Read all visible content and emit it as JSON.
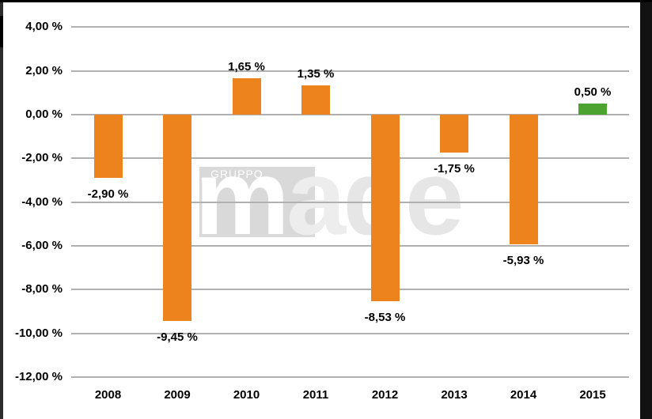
{
  "chart_data": {
    "type": "bar",
    "title": "",
    "xlabel": "",
    "ylabel": "",
    "categories": [
      "2008",
      "2009",
      "2010",
      "2011",
      "2012",
      "2013",
      "2014",
      "2015"
    ],
    "values": [
      -2.9,
      -9.45,
      1.65,
      1.35,
      -8.53,
      -1.75,
      -5.93,
      0.5
    ],
    "value_labels": [
      "-2,90 %",
      "-9,45 %",
      "1,65 %",
      "1,35 %",
      "-8,53 %",
      "-1,75 %",
      "-5,93 %",
      "0,50 %"
    ],
    "bar_colors": [
      "#ED831D",
      "#ED831D",
      "#ED831D",
      "#ED831D",
      "#ED831D",
      "#ED831D",
      "#ED831D",
      "#4DA32F"
    ],
    "y_axis": {
      "min": -12,
      "max": 4,
      "ticks": [
        4,
        2,
        0,
        -2,
        -4,
        -6,
        -8,
        -10,
        -12
      ],
      "tick_labels": [
        "4,00 %",
        "2,00 %",
        "0,00 %",
        "-2,00 %",
        "-4,00 %",
        "-6,00 %",
        "-8,00 %",
        "-10,00 %",
        "-12,00 %"
      ],
      "grid": true
    },
    "legend": "none"
  },
  "watermark": {
    "brand_top": "GRUPPO",
    "brand_main": "made",
    "letter_colors": [
      "#ffffff",
      "#ededed",
      "#e6e6e6",
      "#e6e6e6"
    ],
    "box_color": "#d9d9d9"
  },
  "colors": {
    "background": "#ffffff",
    "gridline": "#b0b0b0",
    "bar_orange": "#ED831D",
    "bar_green": "#4DA32F",
    "text": "#000000",
    "frame_left": "#2d2d2d",
    "frame_right": "#121212",
    "frame_top": "#000000"
  }
}
